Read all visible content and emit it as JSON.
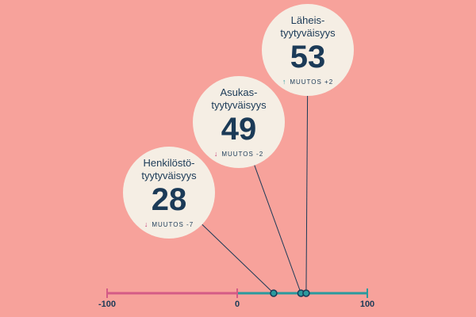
{
  "chart_data": {
    "type": "scatter",
    "title": "",
    "xlabel": "",
    "ylabel": "",
    "xlim": [
      -100,
      100
    ],
    "ticks": [
      "-100",
      "0",
      "100"
    ],
    "negative_color": "#D45B86",
    "positive_color": "#2A9A9E",
    "points": [
      {
        "label_line1": "Henkilöstö-",
        "label_line2": "tyytyväisyys",
        "value": 28,
        "value_text": "28",
        "change": "MUUTOS -7",
        "direction": "down",
        "arrow_color": "#C2417A"
      },
      {
        "label_line1": "Asukas-",
        "label_line2": "tyytyväisyys",
        "value": 49,
        "value_text": "49",
        "change": "MUUTOS -2",
        "direction": "down",
        "arrow_color": "#C2417A"
      },
      {
        "label_line1": "Läheis-",
        "label_line2": "tyytyväisyys",
        "value": 53,
        "value_text": "53",
        "change": "MUUTOS +2",
        "direction": "up",
        "arrow_color": "#2A9A9E"
      }
    ]
  }
}
